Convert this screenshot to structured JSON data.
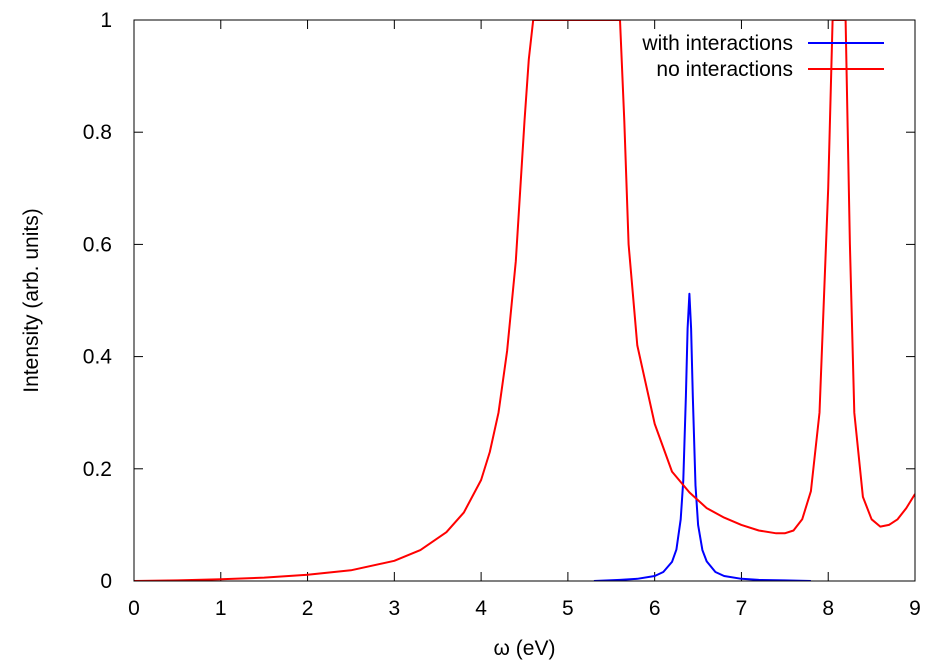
{
  "chart_data": {
    "type": "line",
    "title": "",
    "xlabel": "ω (eV)",
    "ylabel": "Intensity (arb. units)",
    "xlim": [
      0,
      9
    ],
    "ylim": [
      0,
      1
    ],
    "xticks": [
      0,
      1,
      2,
      3,
      4,
      5,
      6,
      7,
      8,
      9
    ],
    "yticks": [
      0,
      0.2,
      0.4,
      0.6,
      0.8,
      1
    ],
    "xtick_labels": [
      "0",
      "1",
      "2",
      "3",
      "4",
      "5",
      "6",
      "7",
      "8",
      "9"
    ],
    "ytick_labels": [
      "0",
      "0.2",
      "0.4",
      "0.6",
      "0.8",
      "1"
    ],
    "grid": false,
    "legend_position": "top-right",
    "series": [
      {
        "name": "with interactions",
        "color": "#0000ff",
        "x": [
          5.3,
          5.6,
          5.8,
          6.0,
          6.1,
          6.2,
          6.25,
          6.3,
          6.33,
          6.36,
          6.38,
          6.4,
          6.42,
          6.44,
          6.47,
          6.5,
          6.55,
          6.6,
          6.7,
          6.8,
          7.0,
          7.2,
          7.5,
          7.8
        ],
        "y": [
          0.0,
          0.002,
          0.004,
          0.009,
          0.016,
          0.034,
          0.056,
          0.11,
          0.18,
          0.33,
          0.45,
          0.512,
          0.45,
          0.33,
          0.17,
          0.1,
          0.055,
          0.035,
          0.016,
          0.009,
          0.004,
          0.002,
          0.001,
          0.0
        ]
      },
      {
        "name": "no interactions",
        "color": "#ff0000",
        "x": [
          0.0,
          0.5,
          1.0,
          1.5,
          2.0,
          2.5,
          3.0,
          3.3,
          3.6,
          3.8,
          4.0,
          4.1,
          4.2,
          4.3,
          4.4,
          4.5,
          4.55,
          4.6,
          5.6,
          5.65,
          5.7,
          5.8,
          6.0,
          6.2,
          6.4,
          6.6,
          6.8,
          7.0,
          7.2,
          7.4,
          7.5,
          7.6,
          7.7,
          7.8,
          7.9,
          8.0,
          8.05,
          8.1,
          8.15,
          8.2,
          8.25,
          8.3,
          8.4,
          8.5,
          8.6,
          8.7,
          8.8,
          8.9,
          9.0
        ],
        "y": [
          0.0,
          0.001,
          0.003,
          0.006,
          0.011,
          0.019,
          0.036,
          0.055,
          0.087,
          0.122,
          0.18,
          0.23,
          0.3,
          0.41,
          0.57,
          0.82,
          0.93,
          1.0,
          1.0,
          0.82,
          0.6,
          0.42,
          0.28,
          0.195,
          0.158,
          0.13,
          0.113,
          0.1,
          0.09,
          0.085,
          0.085,
          0.09,
          0.11,
          0.16,
          0.3,
          0.7,
          1.0,
          1.0,
          1.0,
          1.0,
          0.6,
          0.3,
          0.15,
          0.11,
          0.097,
          0.1,
          0.11,
          0.13,
          0.155
        ]
      }
    ]
  }
}
